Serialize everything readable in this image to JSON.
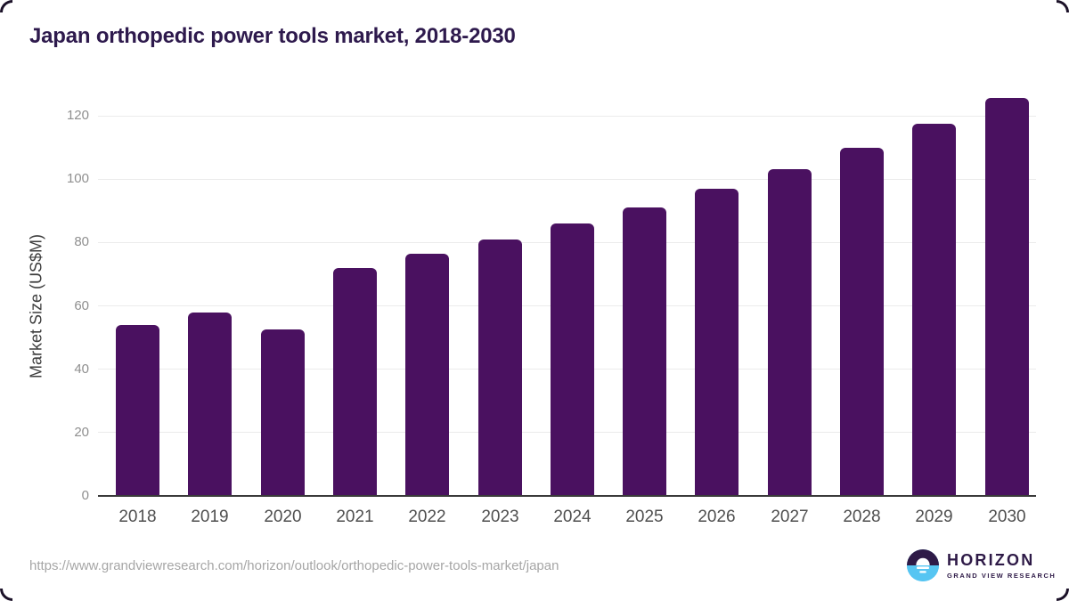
{
  "chart_data": {
    "type": "bar",
    "title": "Japan orthopedic power tools market, 2018-2030",
    "categories": [
      "2018",
      "2019",
      "2020",
      "2021",
      "2022",
      "2023",
      "2024",
      "2025",
      "2026",
      "2027",
      "2028",
      "2029",
      "2030"
    ],
    "values": [
      54,
      58,
      52.5,
      72,
      76.5,
      81,
      86,
      91,
      97,
      103,
      110,
      117.5,
      125.5
    ],
    "xlabel": "",
    "ylabel": "Market Size (US$M)",
    "ylim": [
      0,
      130
    ],
    "yticks": [
      0,
      20,
      40,
      60,
      80,
      100,
      120
    ],
    "grid": true,
    "legend": false,
    "bar_color": "#4a1160"
  },
  "footer": {
    "source_url": "https://www.grandviewresearch.com/horizon/outlook/orthopedic-power-tools-market/japan",
    "logo": {
      "wordmark": "HORIZON",
      "subtext": "GRAND VIEW RESEARCH",
      "icon": "horizon-sunset-circle-icon"
    }
  },
  "colors": {
    "bar": "#4a1160",
    "title_text": "#2e1a4d",
    "axis_title_text": "#3d3d3d",
    "grid_line": "#ebebeb",
    "axis_line": "#3a3a3a",
    "ytick_text": "#8f8f8f",
    "xtick_text": "#4f4f4f",
    "url_text": "#a6a6a6",
    "logo_purple": "#2e1a47",
    "logo_blue": "#56c5f2"
  }
}
